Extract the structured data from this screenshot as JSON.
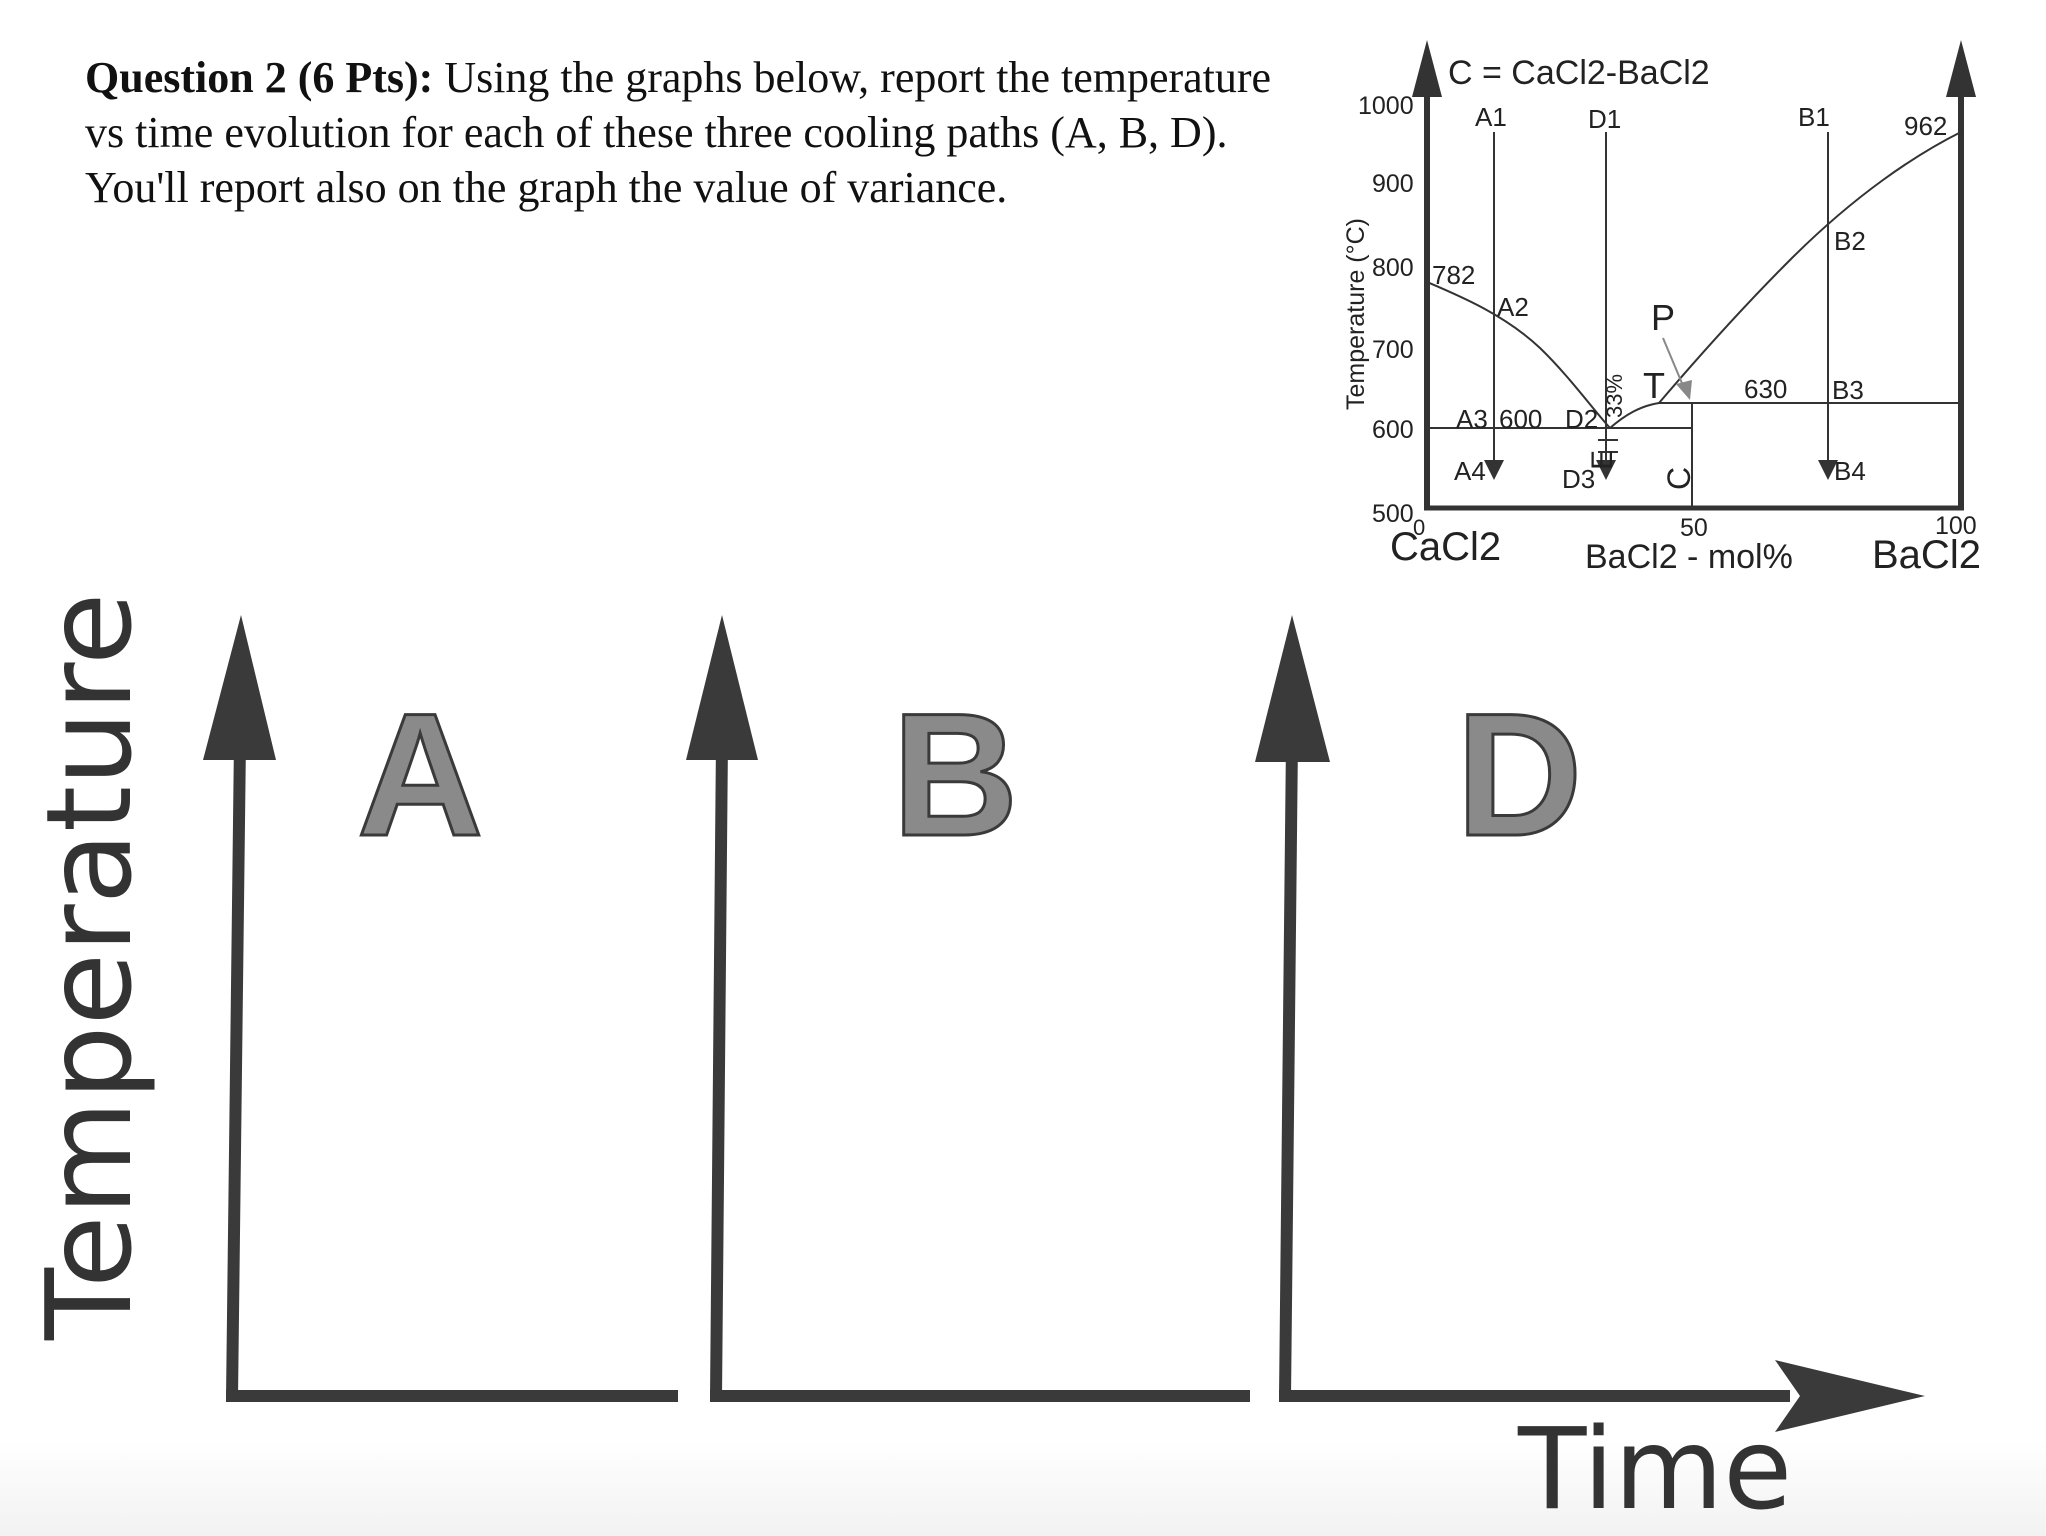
{
  "question": {
    "heading": "Question 2 (6 Pts):",
    "body": "Using the graphs below, report the temperature vs time evolution for each of these three cooling paths (A, B, D). You'll report also on the graph the value of variance."
  },
  "phase_diagram": {
    "title": "C = CaCl2-BaCl2",
    "y_axis_label": "Temperature (°C)",
    "x_axis_label": "BaCl2 - mol%",
    "left_component": "CaCl2",
    "right_component": "BaCl2",
    "y_ticks": [
      "1000",
      "900",
      "800",
      "700",
      "600",
      "500"
    ],
    "x_ticks": [
      "0",
      "50",
      "100"
    ],
    "melting_left": "782",
    "melting_right": "962",
    "eutectic_temp": "600",
    "peritectic_temp": "630",
    "eutectic_composition": "33%",
    "labels": {
      "A1": "A1",
      "A2": "A2",
      "A3": "A3",
      "A4": "A4",
      "B1": "B1",
      "B2": "B2",
      "B3": "B3",
      "B4": "B4",
      "D1": "D1",
      "D2": "D2",
      "D3": "D3",
      "E": "E",
      "P": "P",
      "T": "T",
      "C": "C"
    }
  },
  "cooling_graphs": {
    "y_label": "Temperature",
    "x_label": "Time",
    "panels": [
      {
        "letter": "A"
      },
      {
        "letter": "B"
      },
      {
        "letter": "D"
      }
    ]
  },
  "colors": {
    "axis": "#3a3a3a",
    "letter_fill": "#8a8a8a",
    "diagram_line": "#333333"
  }
}
